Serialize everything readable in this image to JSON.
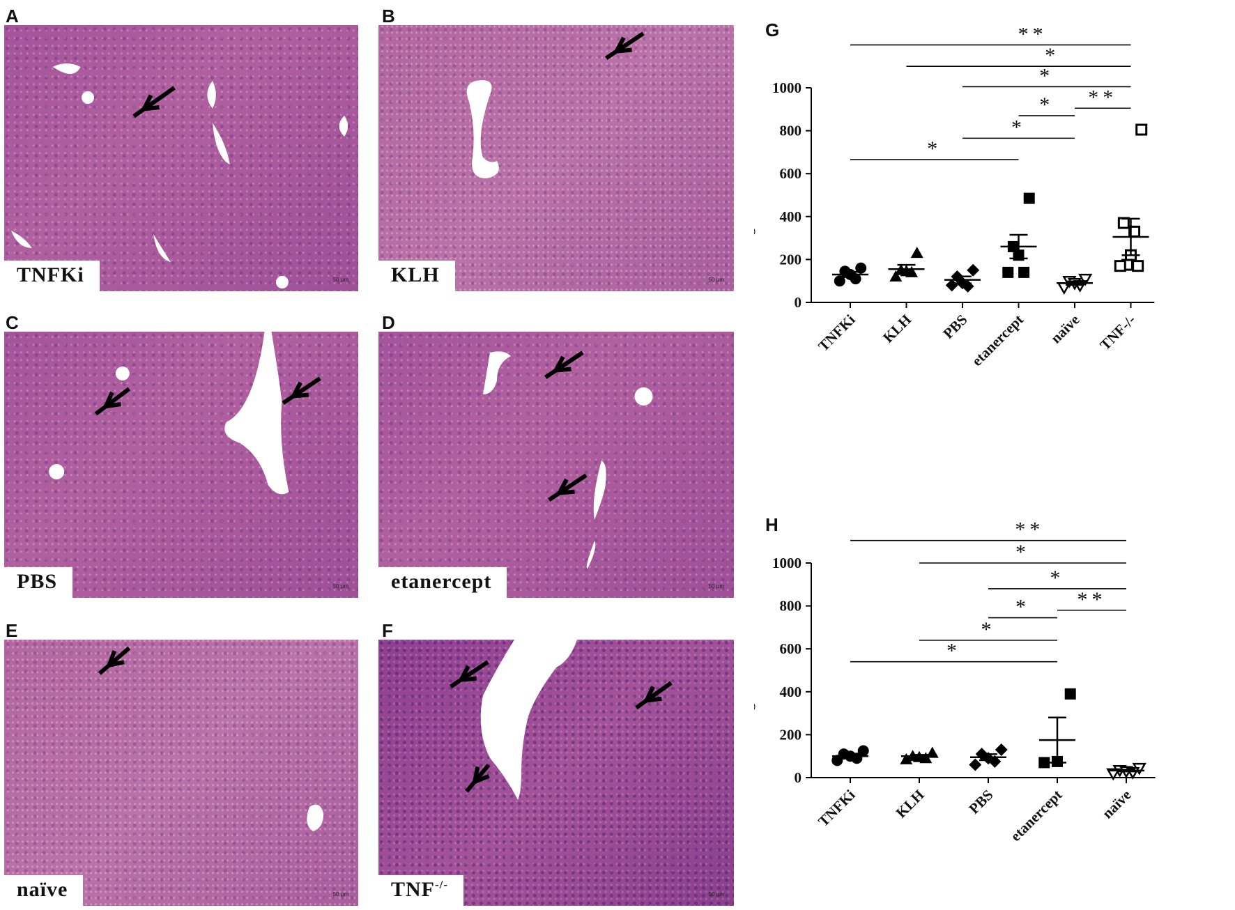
{
  "panels": [
    {
      "letter": "A",
      "label": "TNFKi",
      "scale": "50 µm"
    },
    {
      "letter": "B",
      "label": "KLH",
      "scale": "50 µm"
    },
    {
      "letter": "C",
      "label": "PBS",
      "scale": "50 µm"
    },
    {
      "letter": "D",
      "label": "etanercept",
      "scale": "50 µm"
    },
    {
      "letter": "E",
      "label": "naïve",
      "scale": "50 µm"
    },
    {
      "letter": "F",
      "label": "TNF",
      "label_sup": "-/-",
      "scale": "50 µm"
    }
  ],
  "chart_data": [
    {
      "panel": "G",
      "type": "scatter",
      "ylabel": "Liver granuloma surface",
      "ylim": [
        0,
        1000
      ],
      "yticks": [
        "0",
        "200",
        "400",
        "600",
        "800",
        "1000"
      ],
      "categories": [
        "TNFKi",
        "KLH",
        "PBS",
        "etanercept",
        "naïve",
        "TNF-/-"
      ],
      "markers": [
        "filled-circle",
        "filled-triangle",
        "filled-diamond",
        "filled-square",
        "open-triangle-down",
        "open-square"
      ],
      "series": [
        {
          "category": "TNFKi",
          "points": [
            160,
            145,
            130,
            110,
            100
          ],
          "mean": 130,
          "sem": 12
        },
        {
          "category": "KLH",
          "points": [
            230,
            150,
            145,
            140,
            120
          ],
          "mean": 155,
          "sem": 20
        },
        {
          "category": "PBS",
          "points": [
            150,
            120,
            90,
            75,
            80
          ],
          "mean": 105,
          "sem": 16
        },
        {
          "category": "etanercept",
          "points": [
            485,
            260,
            220,
            140,
            140
          ],
          "mean": 260,
          "sem": 55
        },
        {
          "category": "naïve",
          "points": [
            110,
            100,
            90,
            80,
            70
          ],
          "mean": 90,
          "sem": 8
        },
        {
          "category": "TNF-/-",
          "points": [
            805,
            370,
            330,
            220,
            175,
            170,
            170
          ],
          "mean": 305,
          "sem": 85
        }
      ],
      "significance": [
        {
          "from": "TNFKi",
          "to": "TNF-/-",
          "label": "**",
          "y": 1200
        },
        {
          "from": "KLH",
          "to": "TNF-/-",
          "label": "*",
          "y": 1100
        },
        {
          "from": "PBS",
          "to": "TNF-/-",
          "label": "*",
          "y": 1005
        },
        {
          "from": "etanercept",
          "to": "naïve",
          "label": "*",
          "y": 870
        },
        {
          "from": "naïve",
          "to": "TNF-/-",
          "label": "**",
          "y": 905
        },
        {
          "from": "PBS",
          "to": "naïve",
          "label": "*",
          "y": 765
        },
        {
          "from": "TNFKi",
          "to": "etanercept",
          "label": "*",
          "y": 665
        }
      ]
    },
    {
      "panel": "H",
      "type": "scatter",
      "ylabel": "Liver granuloma surface",
      "ylim": [
        0,
        1000
      ],
      "yticks": [
        "0",
        "200",
        "400",
        "600",
        "800",
        "1000"
      ],
      "categories": [
        "TNFKi",
        "KLH",
        "PBS",
        "etanercept",
        "naïve"
      ],
      "markers": [
        "filled-circle",
        "filled-triangle",
        "filled-diamond",
        "filled-square",
        "open-triangle-down"
      ],
      "series": [
        {
          "category": "TNFKi",
          "points": [
            125,
            110,
            100,
            90,
            80
          ],
          "mean": 100,
          "sem": 8
        },
        {
          "category": "KLH",
          "points": [
            115,
            100,
            95,
            90,
            85
          ],
          "mean": 100,
          "sem": 6
        },
        {
          "category": "PBS",
          "points": [
            130,
            110,
            90,
            75,
            60
          ],
          "mean": 95,
          "sem": 14
        },
        {
          "category": "etanercept",
          "points": [
            390,
            75,
            70
          ],
          "mean": 175,
          "sem": 105
        },
        {
          "category": "naïve",
          "points": [
            45,
            35,
            30,
            25,
            20
          ],
          "mean": 33,
          "sem": 4
        }
      ],
      "significance": [
        {
          "from": "TNFKi",
          "to": "naïve",
          "label": "**",
          "y": 1105
        },
        {
          "from": "KLH",
          "to": "naïve",
          "label": "*",
          "y": 1000
        },
        {
          "from": "PBS",
          "to": "naïve",
          "label": "*",
          "y": 880
        },
        {
          "from": "PBS",
          "to": "etanercept",
          "label": "*",
          "y": 745
        },
        {
          "from": "etanercept",
          "to": "naïve",
          "label": "**",
          "y": 780
        },
        {
          "from": "KLH",
          "to": "etanercept",
          "label": "*",
          "y": 640
        },
        {
          "from": "TNFKi",
          "to": "etanercept",
          "label": "*",
          "y": 540
        }
      ]
    }
  ]
}
